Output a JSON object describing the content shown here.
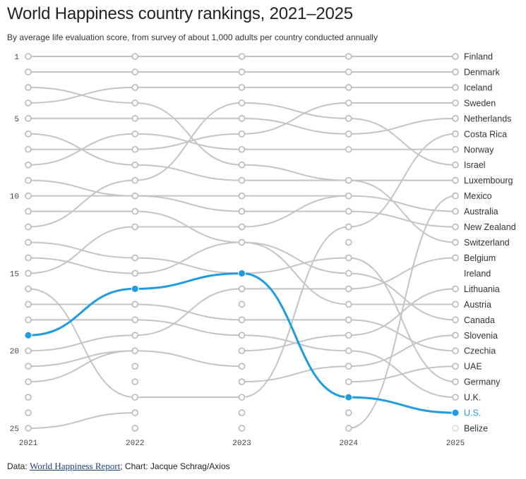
{
  "title": "World Happiness country rankings, 2021–2025",
  "subtitle": "By average life evaluation score, from survey of about 1,000 adults per country conducted annually",
  "footer": {
    "data_prefix": "Data: ",
    "source_link": "World Happiness Report",
    "credit": "; Chart: Jacque Schrag/Axios"
  },
  "colors": {
    "line": "#c4c4c4",
    "highlight": "#1f9be0",
    "dot_stroke": "#b8b8b8"
  },
  "chart_data": {
    "type": "line",
    "chart_kind": "bump",
    "title": "World Happiness country rankings, 2021–2025",
    "xlabel": "",
    "ylabel": "",
    "x": [
      2021,
      2022,
      2023,
      2024,
      2025
    ],
    "year_labels": [
      "2021",
      "2022",
      "2023",
      "2024",
      "2025"
    ],
    "ylim": [
      1,
      25
    ],
    "y_inverted": true,
    "rank_ticks": [
      1,
      5,
      10,
      15,
      20,
      25
    ],
    "highlight_series": "U.S.",
    "series": [
      {
        "name": "Finland",
        "values": [
          1,
          1,
          1,
          1,
          1
        ]
      },
      {
        "name": "Denmark",
        "values": [
          2,
          2,
          2,
          2,
          2
        ]
      },
      {
        "name": "Iceland",
        "values": [
          4,
          3,
          3,
          3,
          3
        ]
      },
      {
        "name": "Sweden",
        "values": [
          7,
          7,
          6,
          4,
          4
        ]
      },
      {
        "name": "Netherlands",
        "values": [
          5,
          5,
          5,
          6,
          5
        ]
      },
      {
        "name": "Costa Rica",
        "values": [
          16,
          23,
          23,
          12,
          6
        ]
      },
      {
        "name": "Norway",
        "values": [
          8,
          6,
          7,
          7,
          7
        ]
      },
      {
        "name": "Israel",
        "values": [
          12,
          9,
          4,
          5,
          8
        ]
      },
      {
        "name": "Luxembourg",
        "values": [
          6,
          8,
          9,
          9,
          9
        ]
      },
      {
        "name": "Mexico",
        "values": [
          null,
          null,
          null,
          25,
          10
        ]
      },
      {
        "name": "Australia",
        "values": [
          10,
          10,
          10,
          10,
          11
        ]
      },
      {
        "name": "New Zealand",
        "values": [
          9,
          10,
          11,
          11,
          12
        ]
      },
      {
        "name": "Switzerland",
        "values": [
          3,
          4,
          8,
          9,
          13
        ]
      },
      {
        "name": "Belgium",
        "values": [
          20,
          19,
          16,
          16,
          14
        ]
      },
      {
        "name": "Ireland",
        "values": [
          15,
          12,
          12,
          10,
          null
        ]
      },
      {
        "name": "Lithuania",
        "values": [
          null,
          null,
          20,
          19,
          16
        ]
      },
      {
        "name": "Austria",
        "values": [
          11,
          11,
          13,
          17,
          17
        ]
      },
      {
        "name": "Canada",
        "values": [
          14,
          15,
          13,
          15,
          18
        ]
      },
      {
        "name": "Slovenia",
        "values": [
          null,
          null,
          22,
          21,
          19
        ]
      },
      {
        "name": "Czechia",
        "values": [
          17,
          17,
          18,
          18,
          20
        ]
      },
      {
        "name": "UAE",
        "values": [
          22,
          20,
          21,
          null,
          21
        ]
      },
      {
        "name": "Germany",
        "values": [
          13,
          14,
          15,
          14,
          22
        ]
      },
      {
        "name": "U.K.",
        "values": [
          18,
          18,
          19,
          20,
          23
        ]
      },
      {
        "name": "U.S.",
        "values": [
          19,
          16,
          15,
          23,
          24
        ]
      },
      {
        "name": "Belize",
        "values": [
          null,
          null,
          null,
          null,
          25
        ]
      }
    ],
    "empty_markers": [
      {
        "x": 2021,
        "ranks": [
          21,
          23,
          24,
          25
        ]
      },
      {
        "x": 2022,
        "ranks": [
          21,
          22,
          24,
          25
        ]
      },
      {
        "x": 2023,
        "ranks": [
          17,
          24,
          25
        ]
      },
      {
        "x": 2024,
        "ranks": [
          13,
          22,
          24
        ]
      }
    ],
    "extra_segments": [
      {
        "from": [
          2021,
          25
        ],
        "to": [
          2022,
          24
        ]
      },
      {
        "from": [
          2021,
          21
        ],
        "to": [
          2022,
          20
        ]
      },
      {
        "from": [
          2024,
          22
        ],
        "to": [
          2025,
          21
        ]
      }
    ]
  }
}
